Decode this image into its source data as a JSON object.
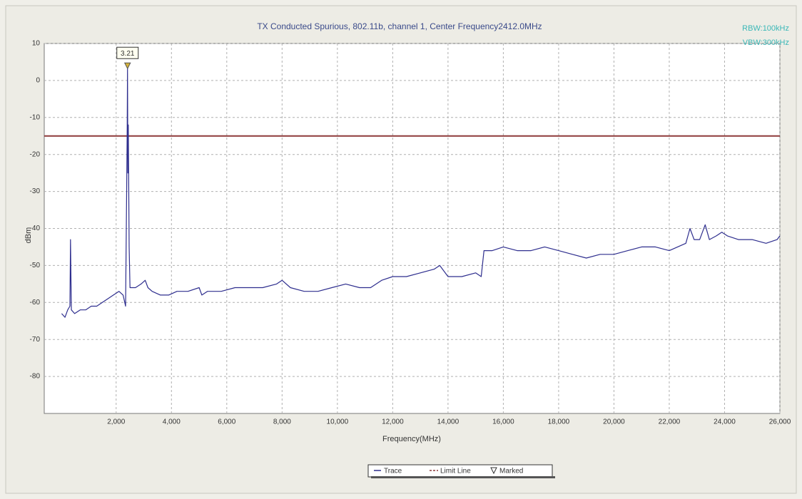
{
  "chart_data": {
    "type": "line",
    "title": "TX Conducted Spurious, 802.11b, channel 1, Center Frequency2412.0MHz",
    "annotations": [
      "RBW:100kHz",
      "VBW:300kHz"
    ],
    "x_label": "Frequency(MHz)",
    "y_label": "dBm",
    "xlim": [
      -600,
      26000
    ],
    "ylim": [
      -90,
      10
    ],
    "xticks": [
      {
        "value": 2000,
        "label": "2,000"
      },
      {
        "value": 4000,
        "label": "4,000"
      },
      {
        "value": 6000,
        "label": "6,000"
      },
      {
        "value": 8000,
        "label": "8,000"
      },
      {
        "value": 10000,
        "label": "10,000"
      },
      {
        "value": 12000,
        "label": "12,000"
      },
      {
        "value": 14000,
        "label": "14,000"
      },
      {
        "value": 16000,
        "label": "16,000"
      },
      {
        "value": 18000,
        "label": "18,000"
      },
      {
        "value": 20000,
        "label": "20,000"
      },
      {
        "value": 22000,
        "label": "22,000"
      },
      {
        "value": 24000,
        "label": "24,000"
      },
      {
        "value": 26000,
        "label": "26,000"
      }
    ],
    "yticks": [
      10,
      0,
      -10,
      -20,
      -30,
      -40,
      -50,
      -60,
      -70,
      -80
    ],
    "grid": true,
    "series": [
      {
        "name": "Trace",
        "color": "#2e2e8e",
        "x": [
          30,
          150,
          250,
          330,
          350,
          380,
          500,
          700,
          900,
          1100,
          1300,
          1500,
          1700,
          1900,
          2100,
          2250,
          2340,
          2380,
          2400,
          2412,
          2425,
          2440,
          2470,
          2500,
          2700,
          2900,
          3050,
          3150,
          3300,
          3600,
          3900,
          4200,
          4600,
          5000,
          5100,
          5300,
          5800,
          6300,
          6800,
          7300,
          7800,
          8000,
          8300,
          8800,
          9300,
          9800,
          10300,
          10800,
          11200,
          11600,
          12000,
          12500,
          13000,
          13500,
          13700,
          14000,
          14500,
          15000,
          15200,
          15300,
          15600,
          16000,
          16500,
          17000,
          17500,
          18000,
          18500,
          19000,
          19500,
          20000,
          20500,
          21000,
          21500,
          22000,
          22300,
          22600,
          22750,
          22900,
          23100,
          23300,
          23450,
          23700,
          23900,
          24100,
          24500,
          25000,
          25500,
          25900,
          26000
        ],
        "values": [
          -63,
          -64,
          -62,
          -61,
          -43,
          -62,
          -63,
          -62,
          -62,
          -61,
          -61,
          -60,
          -59,
          -58,
          -57,
          -58,
          -61,
          -30,
          -12,
          3.21,
          -25,
          -12,
          -45,
          -56,
          -56,
          -55,
          -54,
          -56,
          -57,
          -58,
          -58,
          -57,
          -57,
          -56,
          -58,
          -57,
          -57,
          -56,
          -56,
          -56,
          -55,
          -54,
          -56,
          -57,
          -57,
          -56,
          -55,
          -56,
          -56,
          -54,
          -53,
          -53,
          -52,
          -51,
          -50,
          -53,
          -53,
          -52,
          -53,
          -46,
          -46,
          -45,
          -46,
          -46,
          -45,
          -46,
          -47,
          -48,
          -47,
          -47,
          -46,
          -45,
          -45,
          -46,
          -45,
          -44,
          -40,
          -43,
          -43,
          -39,
          -43,
          -42,
          -41,
          -42,
          -43,
          -43,
          -44,
          -43,
          -42
        ]
      }
    ],
    "limit_line": {
      "name": "Limit Line",
      "value": -15,
      "color": "#8e3a3a"
    },
    "marker": {
      "name": "Marked",
      "x": 2412,
      "value": 3.21,
      "color": "#d4b23a"
    }
  }
}
